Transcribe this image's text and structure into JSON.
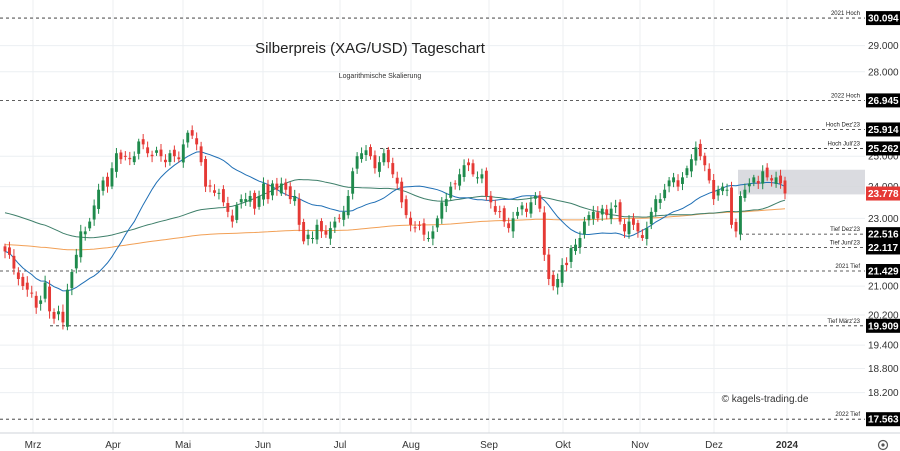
{
  "chart_data": {
    "type": "candlestick",
    "title": "Silberpreis (XAG/USD) Tageschart",
    "subtitle": "Logarithmische Skalierung",
    "watermark": "© kagels-trading.de",
    "log_scale": true,
    "ylim": [
      17.45,
      30.3
    ],
    "y_ticks": [
      "29.000",
      "28.000",
      "25.000",
      "24.000",
      "23.000",
      "21.000",
      "20.200",
      "19.400",
      "18.800",
      "18.200"
    ],
    "x_labels": [
      "Mrz",
      "Apr",
      "Mai",
      "Jun",
      "Jul",
      "Aug",
      "Sep",
      "Okt",
      "Nov",
      "Dez",
      "2024"
    ],
    "levels": [
      {
        "value": "30.094",
        "note": "2021 Hoch"
      },
      {
        "value": "26.945",
        "note": "2022 Hoch"
      },
      {
        "value": "25.914",
        "note": "Hoch Dez'23"
      },
      {
        "value": "25.262",
        "note": "Hoch Juli'23"
      },
      {
        "value": "22.516",
        "note": "Tief Dez'23"
      },
      {
        "value": "22.117",
        "note": "Tief Juni'23"
      },
      {
        "value": "21.429",
        "note": "2021 Tief"
      },
      {
        "value": "19.909",
        "note": "Tief März'23"
      },
      {
        "value": "17.563",
        "note": "2022 Tief"
      }
    ],
    "last_price": "23.778",
    "last_price_color": "#e53935",
    "up_color": "#1f8a4c",
    "down_color": "#e53935",
    "zone_range": [
      23.75,
      24.55
    ],
    "zone_color": "#d3d5da",
    "ma_colors": {
      "ma20": "#1f6fb5",
      "ma50": "#3e7f6a",
      "ma200": "#f2a056"
    },
    "closes": [
      22.0,
      21.9,
      21.5,
      21.2,
      21.0,
      20.9,
      20.8,
      20.4,
      20.6,
      21.1,
      20.3,
      20.1,
      20.3,
      20.0,
      20.9,
      21.4,
      21.9,
      22.6,
      22.6,
      22.9,
      23.4,
      23.9,
      24.2,
      24.0,
      24.6,
      25.1,
      24.9,
      25.0,
      24.9,
      25.0,
      25.5,
      25.4,
      25.1,
      25.0,
      25.2,
      25.0,
      24.8,
      25.1,
      25.0,
      24.9,
      25.4,
      25.8,
      25.7,
      25.4,
      24.8,
      24.0,
      24.0,
      23.8,
      23.8,
      23.5,
      23.2,
      22.9,
      23.4,
      23.6,
      23.6,
      23.7,
      23.3,
      23.7,
      24.1,
      23.6,
      24.1,
      23.9,
      24.1,
      23.9,
      23.6,
      23.7,
      22.8,
      22.3,
      22.5,
      22.4,
      22.8,
      22.6,
      22.5,
      22.7,
      22.9,
      23.0,
      23.2,
      23.7,
      24.5,
      25.0,
      25.1,
      25.2,
      25.0,
      24.6,
      24.8,
      25.1,
      24.8,
      24.4,
      24.1,
      23.5,
      23.1,
      22.8,
      22.7,
      22.8,
      22.5,
      22.4,
      22.6,
      23.0,
      23.5,
      23.6,
      24.0,
      24.1,
      24.4,
      24.7,
      24.7,
      24.4,
      24.3,
      24.4,
      23.7,
      23.5,
      23.2,
      23.2,
      22.9,
      22.7,
      23.0,
      23.2,
      23.4,
      23.2,
      23.5,
      23.7,
      23.3,
      21.9,
      21.2,
      21.0,
      21.2,
      21.6,
      21.6,
      22.1,
      22.2,
      22.4,
      22.9,
      23.1,
      23.2,
      23.0,
      23.3,
      23.1,
      23.3,
      23.4,
      22.9,
      22.6,
      22.9,
      22.8,
      22.6,
      22.4,
      22.7,
      23.2,
      23.6,
      23.6,
      23.9,
      24.2,
      24.3,
      24.0,
      24.3,
      24.6,
      24.9,
      25.3,
      25.0,
      24.7,
      24.2,
      23.6,
      23.9,
      24.0,
      23.9,
      22.8,
      22.6,
      23.7,
      23.9,
      24.1,
      24.3,
      24.1,
      24.5,
      24.3,
      24.2,
      24.3,
      24.1,
      23.78
    ]
  }
}
